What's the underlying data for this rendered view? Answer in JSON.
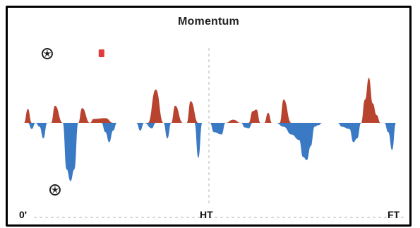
{
  "widget": {
    "title": "Momentum"
  },
  "axis": {
    "start_label": "0'",
    "half_label": "HT",
    "end_label": "FT"
  },
  "colors": {
    "home": "#b8432f",
    "away": "#3a79c4",
    "guide": "#d5d5d5",
    "card": "#e03c3c"
  },
  "events": [
    {
      "type": "goal",
      "team": "home",
      "minute": 6,
      "icon": "soccer-ball-icon"
    },
    {
      "type": "red-card",
      "team": "home",
      "minute": 20,
      "icon": "red-card-icon"
    },
    {
      "type": "goal",
      "team": "away",
      "minute": 8,
      "icon": "soccer-ball-icon"
    }
  ],
  "chart_data": {
    "type": "area",
    "x_range": [
      0,
      96
    ],
    "y_range": [
      -100,
      100
    ],
    "half_time_minute": 45,
    "series": [
      {
        "team": "home",
        "points": [
          [
            0,
            0
          ],
          [
            1,
            18
          ],
          [
            2,
            0
          ],
          [
            7,
            0
          ],
          [
            8,
            22
          ],
          [
            10,
            0
          ],
          [
            14,
            0
          ],
          [
            15,
            19
          ],
          [
            17,
            0
          ],
          [
            18,
            5
          ],
          [
            21,
            6
          ],
          [
            23,
            0
          ],
          [
            32,
            0
          ],
          [
            34,
            43
          ],
          [
            36,
            0
          ],
          [
            38,
            0
          ],
          [
            39,
            22
          ],
          [
            41,
            0
          ],
          [
            42,
            0
          ],
          [
            43,
            28
          ],
          [
            45,
            0
          ],
          [
            52,
            0
          ],
          [
            54,
            4
          ],
          [
            56,
            0
          ],
          [
            58,
            0
          ],
          [
            59,
            15
          ],
          [
            60,
            17
          ],
          [
            61,
            0
          ],
          [
            62,
            0
          ],
          [
            63,
            13
          ],
          [
            64,
            0
          ],
          [
            66,
            0
          ],
          [
            67,
            30
          ],
          [
            69,
            0
          ],
          [
            87,
            0
          ],
          [
            88,
            30
          ],
          [
            89,
            58
          ],
          [
            90,
            25
          ],
          [
            91,
            10
          ],
          [
            92,
            0
          ],
          [
            96,
            0
          ]
        ]
      },
      {
        "team": "away",
        "points": [
          [
            0,
            0
          ],
          [
            1,
            0
          ],
          [
            2,
            -8
          ],
          [
            3,
            0
          ],
          [
            4,
            -5
          ],
          [
            5,
            -20
          ],
          [
            6,
            0
          ],
          [
            10,
            0
          ],
          [
            11,
            -60
          ],
          [
            12,
            -75
          ],
          [
            13,
            -60
          ],
          [
            14,
            0
          ],
          [
            20,
            0
          ],
          [
            21,
            -12
          ],
          [
            22,
            -25
          ],
          [
            23,
            -10
          ],
          [
            24,
            0
          ],
          [
            29,
            0
          ],
          [
            30,
            -10
          ],
          [
            31,
            0
          ],
          [
            33,
            -7
          ],
          [
            34,
            0
          ],
          [
            36,
            0
          ],
          [
            37,
            -20
          ],
          [
            38,
            0
          ],
          [
            44,
            0
          ],
          [
            45,
            -45
          ],
          [
            46,
            0
          ],
          [
            48,
            0
          ],
          [
            49,
            -12
          ],
          [
            51,
            -15
          ],
          [
            52,
            0
          ],
          [
            56,
            0
          ],
          [
            57,
            -6
          ],
          [
            58,
            -7
          ],
          [
            59,
            0
          ],
          [
            65,
            0
          ],
          [
            67,
            -5
          ],
          [
            69,
            -15
          ],
          [
            71,
            -22
          ],
          [
            72,
            -44
          ],
          [
            73,
            -48
          ],
          [
            74,
            -30
          ],
          [
            75,
            -5
          ],
          [
            76,
            -3
          ],
          [
            77,
            0
          ],
          [
            81,
            0
          ],
          [
            82,
            -5
          ],
          [
            84,
            -8
          ],
          [
            85,
            -25
          ],
          [
            86,
            -20
          ],
          [
            87,
            0
          ],
          [
            93,
            0
          ],
          [
            94,
            -12
          ],
          [
            95,
            -35
          ],
          [
            96,
            0
          ]
        ]
      }
    ]
  }
}
